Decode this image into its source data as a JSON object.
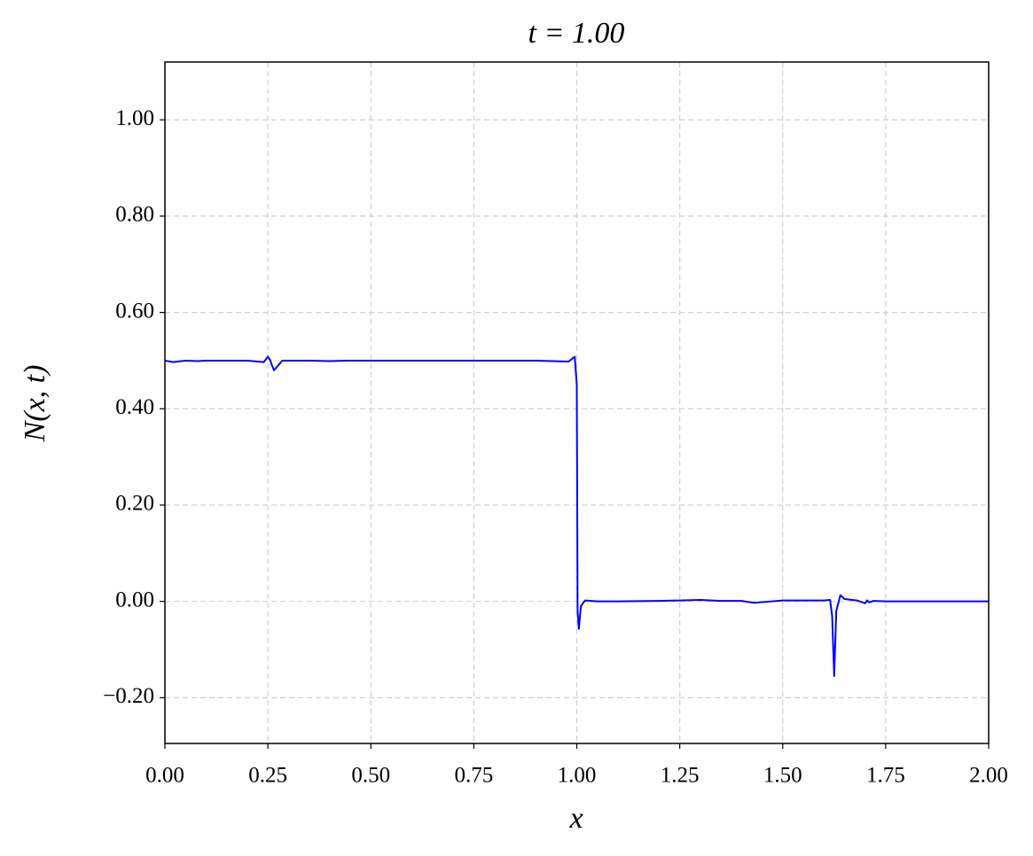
{
  "chart_data": {
    "type": "line",
    "title": "t = 1.00",
    "xlabel": "x",
    "ylabel": "N(x, t)",
    "x": [
      0,
      0.02,
      0.05,
      0.08,
      0.1,
      0.15,
      0.2,
      0.24,
      0.25,
      0.255,
      0.26,
      0.265,
      0.275,
      0.285,
      0.3,
      0.35,
      0.4,
      0.45,
      0.5,
      0.6,
      0.7,
      0.8,
      0.9,
      0.98,
      0.995,
      1.0,
      1.002,
      1.005,
      1.01,
      1.02,
      1.05,
      1.1,
      1.2,
      1.25,
      1.3,
      1.35,
      1.4,
      1.43,
      1.5,
      1.6,
      1.615,
      1.62,
      1.625,
      1.63,
      1.64,
      1.65,
      1.68,
      1.7,
      1.705,
      1.71,
      1.72,
      1.75,
      1.8,
      1.9,
      2.0
    ],
    "values": [
      0.5,
      0.497,
      0.5,
      0.499,
      0.5,
      0.5,
      0.5,
      0.497,
      0.508,
      0.502,
      0.49,
      0.48,
      0.49,
      0.5,
      0.5,
      0.5,
      0.499,
      0.5,
      0.5,
      0.5,
      0.5,
      0.5,
      0.5,
      0.498,
      0.508,
      0.45,
      -0.02,
      -0.057,
      -0.01,
      0.002,
      0,
      0,
      0.001,
      0.002,
      0.003,
      0.001,
      0.001,
      -0.003,
      0.002,
      0.002,
      0.003,
      -0.03,
      -0.155,
      -0.02,
      0.013,
      0.005,
      0.002,
      -0.004,
      0.002,
      -0.002,
      0.001,
      0,
      0,
      0,
      0
    ],
    "color": "#0000ff",
    "xlim": [
      0,
      2
    ],
    "ylim": [
      -0.295,
      1.12
    ],
    "xticks": [
      {
        "value": 0,
        "label": "0.00"
      },
      {
        "value": 0.25,
        "label": "0.25"
      },
      {
        "value": 0.5,
        "label": "0.50"
      },
      {
        "value": 0.75,
        "label": "0.75"
      },
      {
        "value": 1,
        "label": "1.00"
      },
      {
        "value": 1.25,
        "label": "1.25"
      },
      {
        "value": 1.5,
        "label": "1.50"
      },
      {
        "value": 1.75,
        "label": "1.75"
      },
      {
        "value": 2,
        "label": "2.00"
      }
    ],
    "yticks": [
      {
        "value": -0.2,
        "label": "−0.20"
      },
      {
        "value": 0,
        "label": "0.00"
      },
      {
        "value": 0.2,
        "label": "0.20"
      },
      {
        "value": 0.4,
        "label": "0.40"
      },
      {
        "value": 0.6,
        "label": "0.60"
      },
      {
        "value": 0.8,
        "label": "0.80"
      },
      {
        "value": 1,
        "label": "1.00"
      }
    ],
    "grid": true
  }
}
